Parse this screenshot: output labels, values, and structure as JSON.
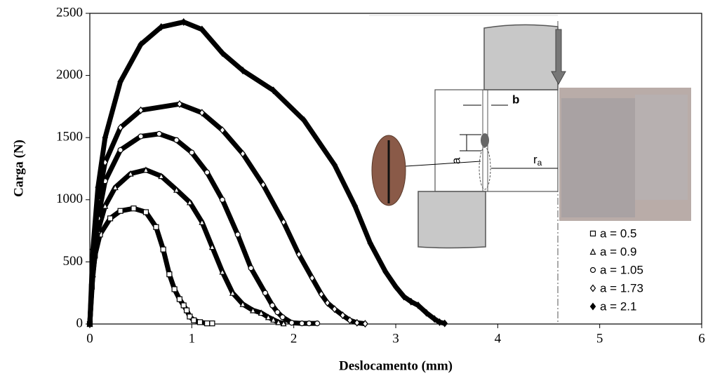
{
  "chart_data": {
    "type": "line",
    "xlabel": "Deslocamento (mm)",
    "ylabel": "Carga (N)",
    "xlim": [
      0,
      6
    ],
    "xticks": [
      0,
      1,
      2,
      3,
      4,
      5,
      6
    ],
    "ylim": [
      0,
      2500
    ],
    "yticks": [
      0,
      500,
      1000,
      1500,
      2000,
      2500
    ],
    "legend": "lower right",
    "annotations": [
      {
        "text": "b"
      },
      {
        "text": "a"
      },
      {
        "text": "r",
        "subscript": "a"
      }
    ],
    "series": [
      {
        "name": "a = 0.5",
        "color": "#000000",
        "marker": "square",
        "x": [
          0,
          0.02,
          0.05,
          0.1,
          0.2,
          0.3,
          0.43,
          0.55,
          0.65,
          0.72,
          0.78,
          0.83,
          0.88,
          0.92,
          0.95,
          0.98,
          1.02,
          1.08,
          1.15,
          1.2
        ],
        "values": [
          0,
          300,
          550,
          720,
          850,
          910,
          930,
          900,
          780,
          600,
          400,
          280,
          200,
          150,
          110,
          60,
          30,
          15,
          5,
          5
        ]
      },
      {
        "name": "a = 0.9",
        "color": "#000000",
        "marker": "triangle",
        "x": [
          0,
          0.03,
          0.08,
          0.15,
          0.25,
          0.4,
          0.55,
          0.7,
          0.85,
          0.98,
          1.1,
          1.2,
          1.3,
          1.4,
          1.5,
          1.6,
          1.68,
          1.75,
          1.8,
          1.85,
          1.9
        ],
        "values": [
          0,
          400,
          750,
          950,
          1100,
          1210,
          1240,
          1190,
          1080,
          980,
          820,
          620,
          420,
          250,
          160,
          110,
          90,
          55,
          35,
          15,
          5
        ]
      },
      {
        "name": "a = 1.05",
        "color": "#000000",
        "marker": "circle",
        "x": [
          0,
          0.03,
          0.08,
          0.15,
          0.3,
          0.5,
          0.68,
          0.85,
          1.0,
          1.15,
          1.3,
          1.45,
          1.58,
          1.72,
          1.79,
          1.84,
          1.89,
          1.98,
          2.08,
          2.15,
          2.23
        ],
        "values": [
          0,
          450,
          850,
          1150,
          1400,
          1510,
          1530,
          1480,
          1380,
          1220,
          1000,
          720,
          450,
          250,
          150,
          95,
          55,
          10,
          5,
          5,
          5
        ]
      },
      {
        "name": "a = 1.73",
        "color": "#000000",
        "marker": "diamond",
        "x": [
          0,
          0.03,
          0.08,
          0.15,
          0.3,
          0.5,
          0.88,
          1.1,
          1.3,
          1.5,
          1.7,
          1.9,
          2.05,
          2.18,
          2.27,
          2.33,
          2.4,
          2.48,
          2.55,
          2.62,
          2.7
        ],
        "values": [
          0,
          500,
          1000,
          1300,
          1580,
          1720,
          1770,
          1700,
          1560,
          1370,
          1120,
          820,
          560,
          370,
          240,
          170,
          120,
          70,
          30,
          10,
          2
        ]
      },
      {
        "name": "a = 2.1",
        "color": "#000000",
        "marker": "diamond-filled",
        "x": [
          0,
          0.03,
          0.08,
          0.15,
          0.3,
          0.5,
          0.7,
          0.92,
          1.1,
          1.3,
          1.5,
          1.8,
          2.1,
          2.4,
          2.6,
          2.75,
          2.9,
          3.0,
          3.08,
          3.15,
          3.22,
          3.3,
          3.38,
          3.43,
          3.48
        ],
        "values": [
          0,
          600,
          1100,
          1500,
          1950,
          2250,
          2390,
          2430,
          2370,
          2180,
          2040,
          1880,
          1640,
          1280,
          950,
          650,
          420,
          300,
          220,
          180,
          150,
          90,
          40,
          15,
          5
        ]
      }
    ]
  }
}
